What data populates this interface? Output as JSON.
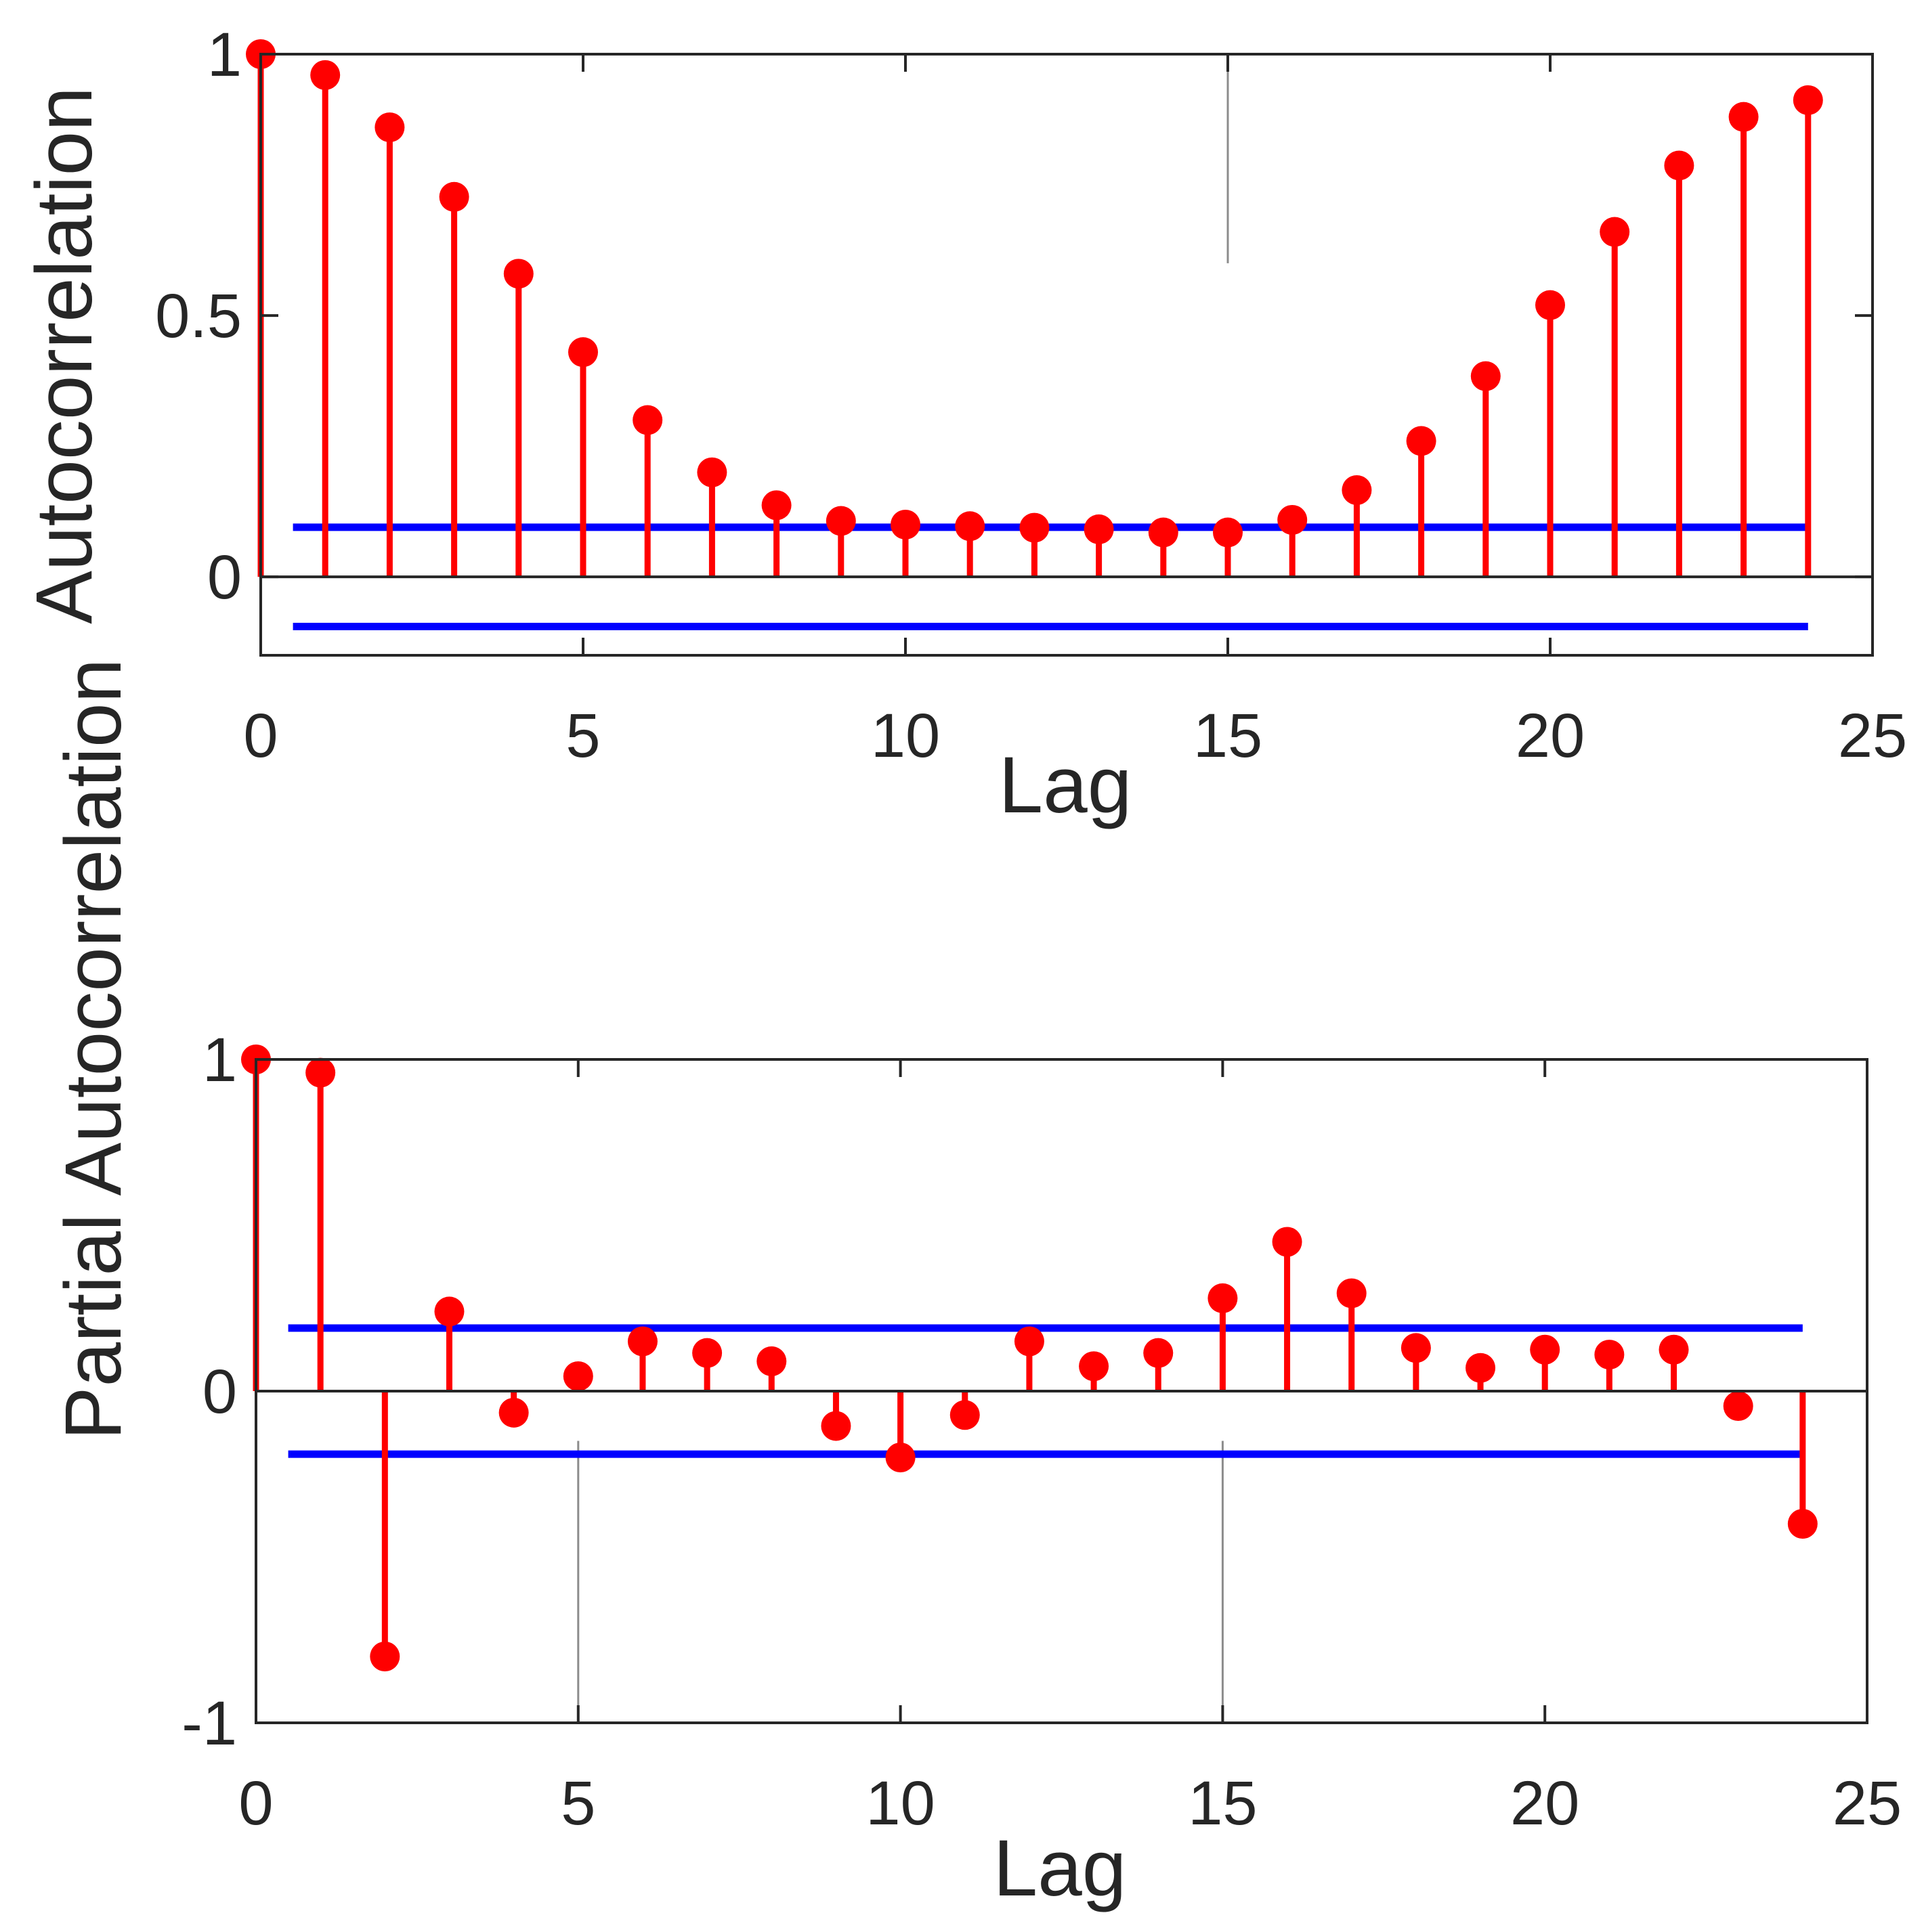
{
  "colors": {
    "stem": "#ff0000",
    "bound": "#0000ff",
    "axis": "#262626",
    "background": "#ffffff"
  },
  "chart_data": [
    {
      "type": "stem",
      "id": "acf",
      "xlabel": "Lag",
      "ylabel": "Autocorrelation",
      "xlim": [
        0,
        25
      ],
      "ylim": [
        -0.15,
        1
      ],
      "xticks": [
        0,
        5,
        10,
        15,
        20,
        25
      ],
      "xtick_labels": [
        "0",
        "5",
        "10",
        "15",
        "20",
        "25"
      ],
      "yticks": [
        0,
        0.5,
        1
      ],
      "ytick_labels": [
        "0",
        "0.5",
        "1"
      ],
      "x": [
        0,
        1,
        2,
        3,
        4,
        5,
        6,
        7,
        8,
        9,
        10,
        11,
        12,
        13,
        14,
        15,
        16,
        17,
        18,
        19,
        20,
        21,
        22,
        23,
        24
      ],
      "values": [
        1.0,
        0.96,
        0.86,
        0.727,
        0.58,
        0.43,
        0.3,
        0.2,
        0.137,
        0.107,
        0.1,
        0.097,
        0.094,
        0.091,
        0.085,
        0.085,
        0.109,
        0.166,
        0.26,
        0.384,
        0.52,
        0.66,
        0.787,
        0.88,
        0.912
      ],
      "bounds": {
        "upper": 0.095,
        "lower": -0.095,
        "x_start": 0.5,
        "x_end": 24
      }
    },
    {
      "type": "stem",
      "id": "pacf",
      "xlabel": "Lag",
      "ylabel": "Partial Autocorrelation",
      "xlim": [
        0,
        25
      ],
      "ylim": [
        -1,
        1
      ],
      "xticks": [
        0,
        5,
        10,
        15,
        20,
        25
      ],
      "xtick_labels": [
        "0",
        "5",
        "10",
        "15",
        "20",
        "25"
      ],
      "yticks": [
        -1,
        0,
        1
      ],
      "ytick_labels": [
        "-1",
        "0",
        "1"
      ],
      "x": [
        0,
        1,
        2,
        3,
        4,
        5,
        6,
        7,
        8,
        9,
        10,
        11,
        12,
        13,
        14,
        15,
        16,
        17,
        18,
        19,
        20,
        21,
        22,
        23,
        24
      ],
      "values": [
        1.0,
        0.96,
        -0.8,
        0.24,
        -0.065,
        0.045,
        0.15,
        0.115,
        0.09,
        -0.105,
        -0.2,
        -0.072,
        0.15,
        0.075,
        0.115,
        0.28,
        0.45,
        0.295,
        0.13,
        0.07,
        0.125,
        0.11,
        0.125,
        -0.045,
        -0.4
      ],
      "bounds": {
        "upper": 0.19,
        "lower": -0.19,
        "x_start": 0.5,
        "x_end": 24
      }
    }
  ]
}
